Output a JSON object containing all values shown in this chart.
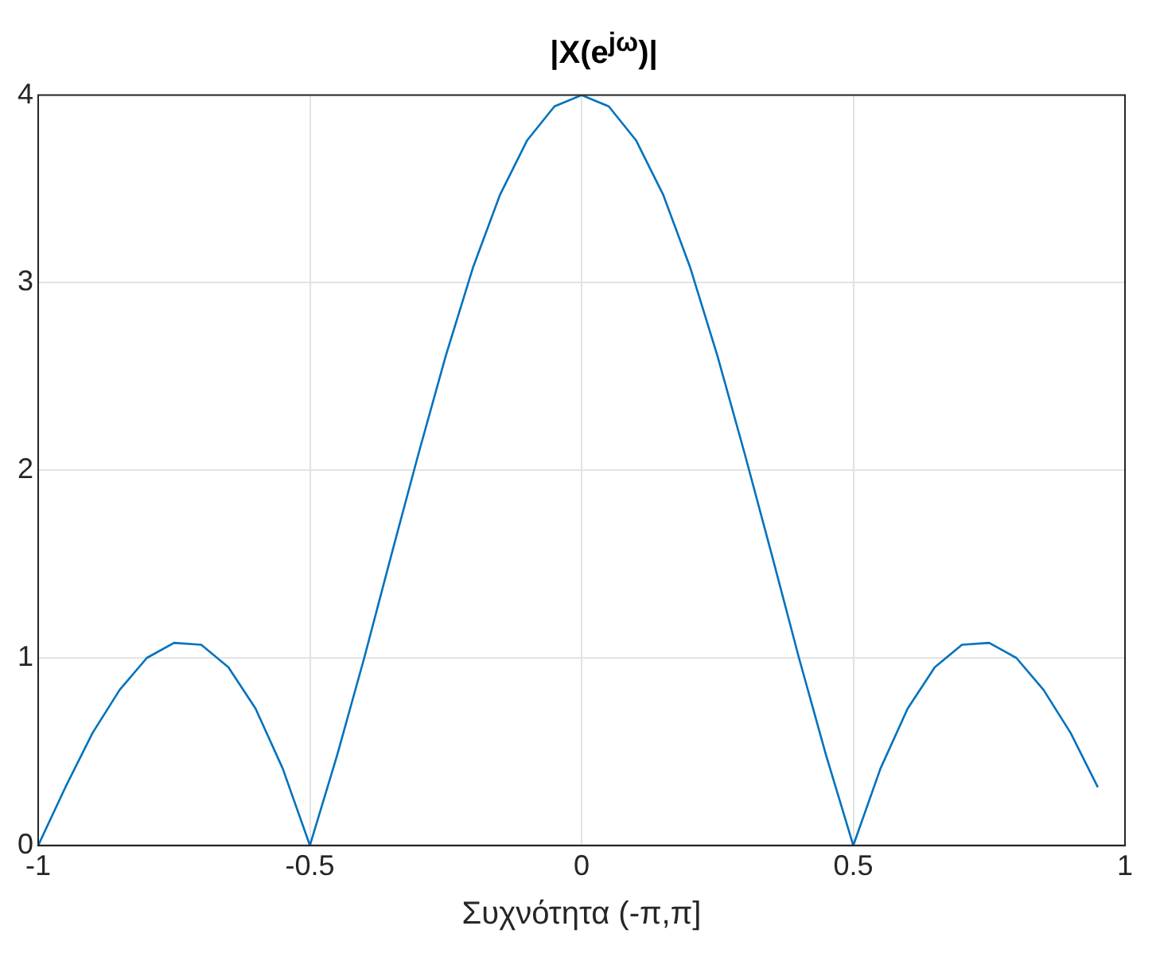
{
  "chart_data": {
    "type": "line",
    "title": "|X(e$^{jω}$)|",
    "xlabel": "Συχνότητα (-π,π]",
    "x": [
      -1,
      -0.95,
      -0.9,
      -0.85,
      -0.8,
      -0.75,
      -0.7,
      -0.65,
      -0.6,
      -0.55,
      -0.5,
      -0.45,
      -0.4,
      -0.35,
      -0.3,
      -0.25,
      -0.2,
      -0.15,
      -0.1,
      -0.05,
      0,
      0.05,
      0.1,
      0.15,
      0.2,
      0.25,
      0.3,
      0.35,
      0.4,
      0.45,
      0.5,
      0.55,
      0.6,
      0.65,
      0.7,
      0.75,
      0.8,
      0.85,
      0.9,
      0.95
    ],
    "series": [
      {
        "color": "#0072bd",
        "values": [
          0,
          0.31,
          0.6,
          0.83,
          1.0,
          1.08,
          1.07,
          0.95,
          0.73,
          0.41,
          0,
          0.48,
          1.0,
          1.55,
          2.09,
          2.61,
          3.08,
          3.47,
          3.76,
          3.94,
          4,
          3.94,
          3.76,
          3.47,
          3.08,
          2.61,
          2.09,
          1.55,
          1.0,
          0.48,
          0,
          0.41,
          0.73,
          0.95,
          1.07,
          1.08,
          1.0,
          0.83,
          0.6,
          0.31
        ]
      }
    ],
    "xlim": [
      -1,
      1
    ],
    "xticks": [
      -1,
      -0.5,
      0,
      0.5,
      1
    ],
    "ylim": [
      0,
      4
    ],
    "yticks": [
      0,
      1,
      2,
      3,
      4
    ],
    "grid": true,
    "legend": false,
    "marker": "none",
    "line_style": "solid"
  }
}
